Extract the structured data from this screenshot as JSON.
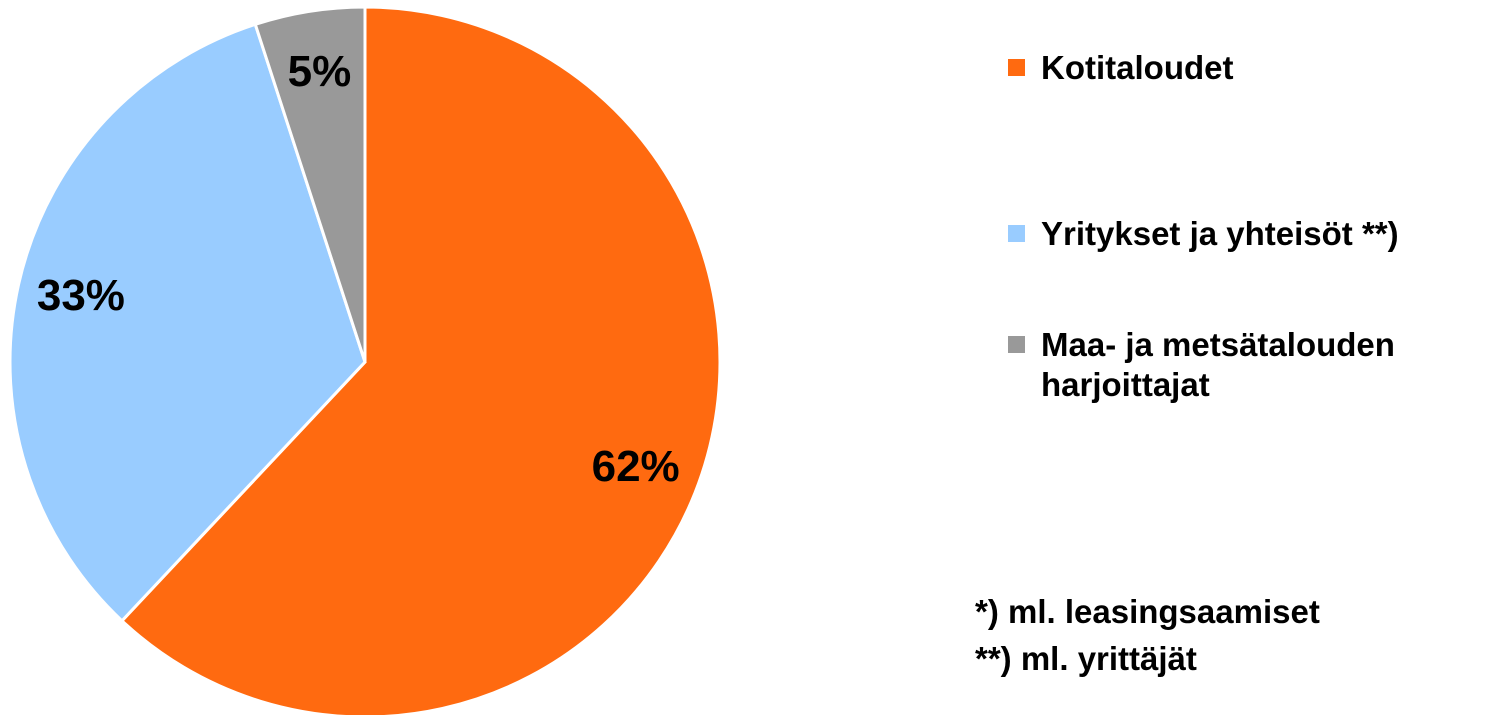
{
  "chart_data": {
    "type": "pie",
    "categories": [
      "Kotitaloudet",
      "Yritykset ja yhteisöt **)",
      "Maa- ja metsätalouden harjoittajat"
    ],
    "values": [
      62,
      33,
      5
    ],
    "value_labels": [
      "62%",
      "33%",
      "5%"
    ],
    "colors": [
      "#ff6a10",
      "#99ccff",
      "#999999"
    ],
    "notes": [
      "*) ml. leasingsaamiset",
      "**) ml. yrittäjät"
    ]
  }
}
